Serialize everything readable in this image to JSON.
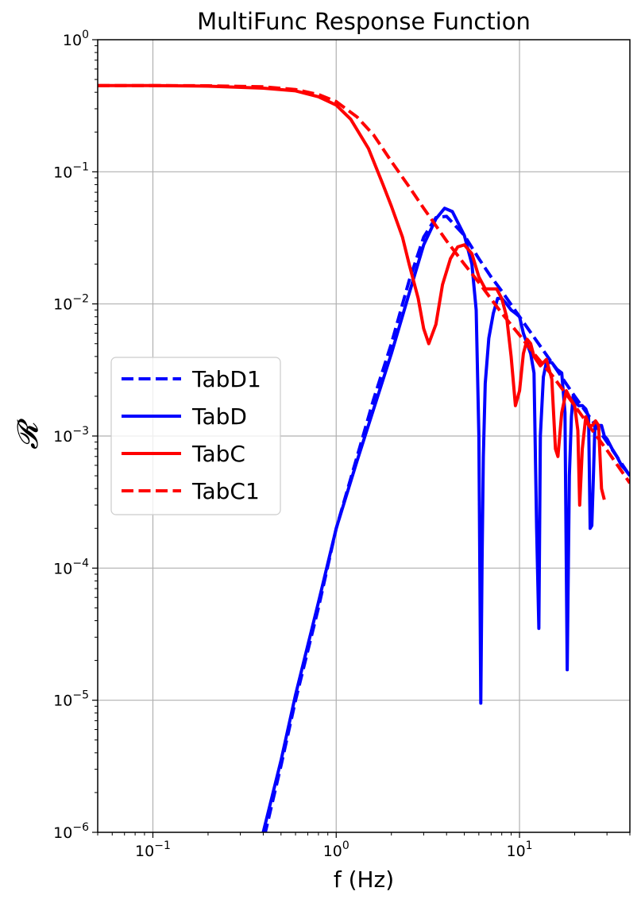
{
  "chart_data": {
    "type": "line",
    "title": "MultiFunc Response Function",
    "xlabel": "f (Hz)",
    "ylabel": "𝓡",
    "x_scale": "log",
    "y_scale": "log",
    "xlim": [
      0.05,
      40
    ],
    "ylim": [
      1e-06,
      1
    ],
    "grid": true,
    "legend_position": "center-left",
    "x_ticks": [
      {
        "value": 0.1,
        "base": "10",
        "exp": "−1"
      },
      {
        "value": 1,
        "base": "10",
        "exp": "0"
      },
      {
        "value": 10,
        "base": "10",
        "exp": "1"
      }
    ],
    "y_ticks": [
      {
        "value": 1e-06,
        "base": "10",
        "exp": "−6"
      },
      {
        "value": 1e-05,
        "base": "10",
        "exp": "−5"
      },
      {
        "value": 0.0001,
        "base": "10",
        "exp": "−4"
      },
      {
        "value": 0.001,
        "base": "10",
        "exp": "−3"
      },
      {
        "value": 0.01,
        "base": "10",
        "exp": "−2"
      },
      {
        "value": 0.1,
        "base": "10",
        "exp": "−1"
      },
      {
        "value": 1,
        "base": "10",
        "exp": "0"
      }
    ],
    "series": [
      {
        "name": "TabD1",
        "color": "#0000ff",
        "style": "dashed",
        "x": [
          0.407,
          0.5,
          0.6,
          0.8,
          1.0,
          1.3,
          1.6,
          2.0,
          2.5,
          3.0,
          3.5,
          4.0,
          5.0,
          6.0,
          7.0,
          8.0,
          10.0,
          12.0,
          15.0,
          20.0,
          25.0,
          30.0,
          40.0
        ],
        "y": [
          9.5e-07,
          3.2e-06,
          1e-05,
          5e-05,
          0.0002,
          0.0007,
          0.0019,
          0.005,
          0.015,
          0.032,
          0.045,
          0.046,
          0.033,
          0.022,
          0.016,
          0.0125,
          0.008,
          0.0056,
          0.0036,
          0.002,
          0.0013,
          0.0009,
          0.0005
        ]
      },
      {
        "name": "TabD",
        "color": "#0000ff",
        "style": "solid",
        "x": [
          0.4,
          0.5,
          0.6,
          0.8,
          1.0,
          1.3,
          1.6,
          2.0,
          2.5,
          3.0,
          3.5,
          3.9,
          4.3,
          5.0,
          5.5,
          5.8,
          6.0,
          6.15,
          6.25,
          6.35,
          6.5,
          6.8,
          7.2,
          7.6,
          8.0,
          8.5,
          9.0,
          9.5,
          10.0,
          10.5,
          11.0,
          11.5,
          12.0,
          12.4,
          12.75,
          13.0,
          13.5,
          14.0,
          15.0,
          16.0,
          17.0,
          17.7,
          18.2,
          18.7,
          19.2,
          19.6,
          20.2,
          21.0,
          22.0,
          23.0,
          23.8,
          24.3,
          24.8,
          25.3,
          25.8,
          27.0,
          28.0,
          29.0,
          30.0,
          32.0,
          34.0,
          36.0,
          38.0,
          40.0
        ],
        "y": [
          1e-06,
          3.5e-06,
          1.1e-05,
          5.5e-05,
          0.0002,
          0.00065,
          0.0016,
          0.0042,
          0.012,
          0.028,
          0.044,
          0.053,
          0.05,
          0.033,
          0.02,
          0.009,
          0.001,
          9.5e-06,
          0.00011,
          0.0007,
          0.0025,
          0.0055,
          0.0085,
          0.011,
          0.011,
          0.01,
          0.009,
          0.0085,
          0.008,
          0.006,
          0.005,
          0.0042,
          0.003,
          0.0002,
          3.5e-05,
          0.001,
          0.0028,
          0.0036,
          0.0036,
          0.0032,
          0.003,
          0.0015,
          1.7e-05,
          0.0005,
          0.0014,
          0.002,
          0.0018,
          0.0017,
          0.0017,
          0.0016,
          0.0014,
          0.0002,
          0.00021,
          0.0005,
          0.0012,
          0.0012,
          0.0012,
          0.001,
          0.00095,
          0.0008,
          0.0007,
          0.0006,
          0.00055,
          0.0005
        ]
      },
      {
        "name": "TabC",
        "color": "#ff0000",
        "style": "solid",
        "x": [
          0.05,
          0.1,
          0.2,
          0.4,
          0.6,
          0.8,
          1.0,
          1.2,
          1.5,
          1.8,
          2.0,
          2.3,
          2.5,
          2.8,
          3.0,
          3.2,
          3.5,
          3.8,
          4.2,
          4.6,
          5.0,
          5.5,
          6.0,
          6.5,
          7.0,
          7.5,
          8.0,
          8.5,
          9.0,
          9.5,
          10.0,
          10.5,
          11.0,
          11.5,
          12.0,
          13.0,
          14.0,
          15.0,
          15.7,
          16.2,
          17.0,
          18.0,
          19.0,
          20.0,
          20.8,
          21.3,
          22.0,
          23.0,
          24.0,
          25.0,
          26.0,
          27.0,
          28.0,
          29.0
        ],
        "y": [
          0.45,
          0.45,
          0.445,
          0.43,
          0.41,
          0.37,
          0.32,
          0.25,
          0.15,
          0.08,
          0.055,
          0.032,
          0.02,
          0.011,
          0.0065,
          0.005,
          0.007,
          0.014,
          0.022,
          0.027,
          0.028,
          0.024,
          0.016,
          0.013,
          0.013,
          0.013,
          0.011,
          0.008,
          0.004,
          0.0017,
          0.0022,
          0.0042,
          0.0054,
          0.005,
          0.004,
          0.0034,
          0.0038,
          0.0027,
          0.0008,
          0.0007,
          0.0015,
          0.0022,
          0.0019,
          0.0017,
          0.0011,
          0.0003,
          0.0008,
          0.0014,
          0.0012,
          0.0012,
          0.0013,
          0.0012,
          0.0004,
          0.00033
        ]
      },
      {
        "name": "TabC1",
        "color": "#ff0000",
        "style": "dashed",
        "x": [
          0.05,
          0.1,
          0.2,
          0.4,
          0.6,
          0.8,
          1.0,
          1.3,
          1.6,
          2.0,
          2.5,
          3.0,
          4.0,
          5.0,
          6.0,
          8.0,
          10.0,
          12.0,
          15.0,
          20.0,
          25.0,
          30.0,
          40.0
        ],
        "y": [
          0.45,
          0.45,
          0.448,
          0.44,
          0.42,
          0.385,
          0.34,
          0.26,
          0.19,
          0.12,
          0.077,
          0.053,
          0.03,
          0.02,
          0.0145,
          0.0085,
          0.0058,
          0.0042,
          0.0029,
          0.0017,
          0.0011,
          0.00078,
          0.00044
        ]
      }
    ]
  }
}
